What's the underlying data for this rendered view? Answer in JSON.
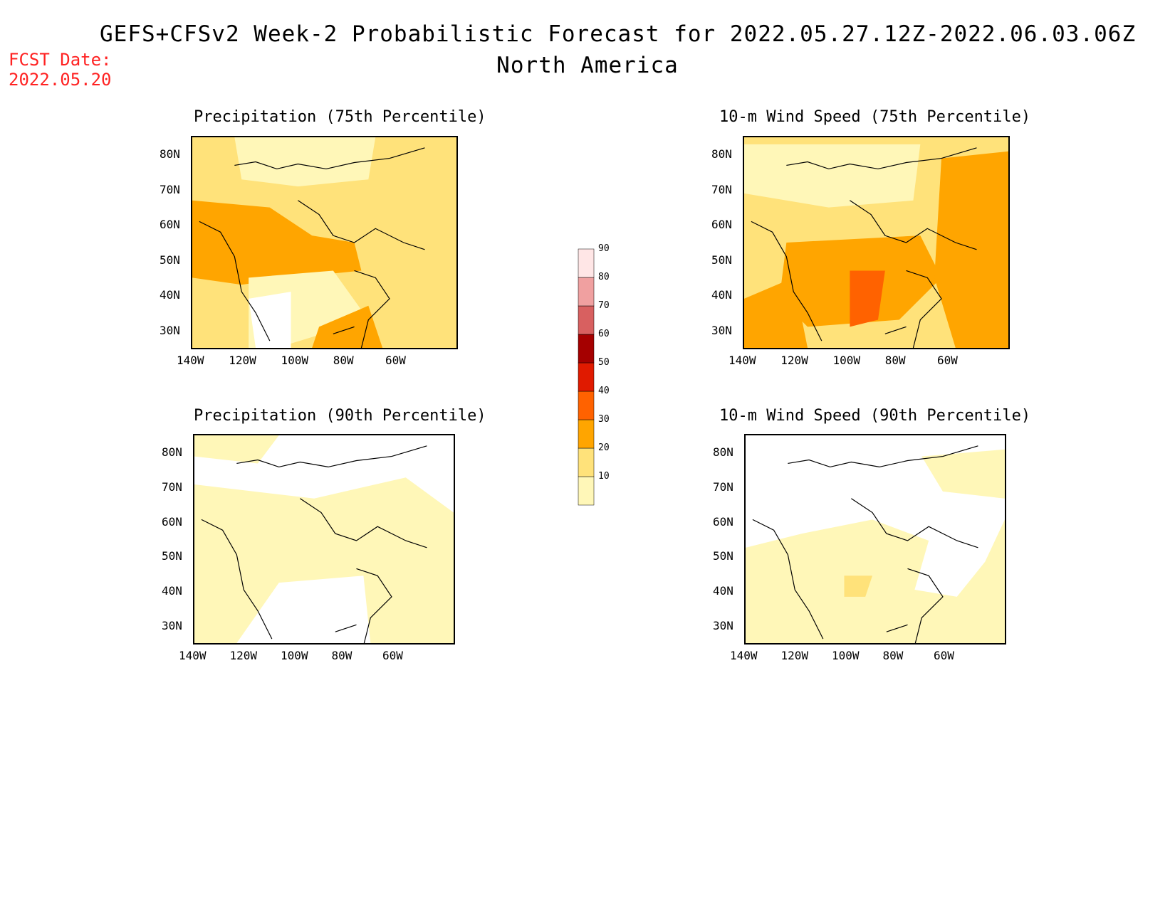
{
  "title_line1": "GEFS+CFSv2 Week-2 Probabilistic Forecast for 2022.05.27.12Z-2022.06.03.06Z",
  "title_line2": "North America",
  "fcst_date_label": "FCST Date:",
  "fcst_date_value": "2022.05.20",
  "panels": [
    {
      "title": "Precipitation (75th Percentile)"
    },
    {
      "title": "10-m Wind Speed (75th Percentile)"
    },
    {
      "title": "Precipitation (90th Percentile)"
    },
    {
      "title": "10-m Wind Speed (90th Percentile)"
    }
  ],
  "lat_ticks": [
    "80N",
    "70N",
    "60N",
    "50N",
    "40N",
    "30N"
  ],
  "lon_ticks": [
    "140W",
    "120W",
    "100W",
    "80W",
    "60W"
  ],
  "colorbar": {
    "levels": [
      "10",
      "20",
      "30",
      "40",
      "50",
      "60",
      "70",
      "80",
      "90"
    ],
    "colors": [
      "#fff7b8",
      "#ffe27a",
      "#ffa500",
      "#ff6200",
      "#e01a00",
      "#a50000",
      "#d86060",
      "#f0a0a0",
      "#ffe6e6"
    ]
  }
}
